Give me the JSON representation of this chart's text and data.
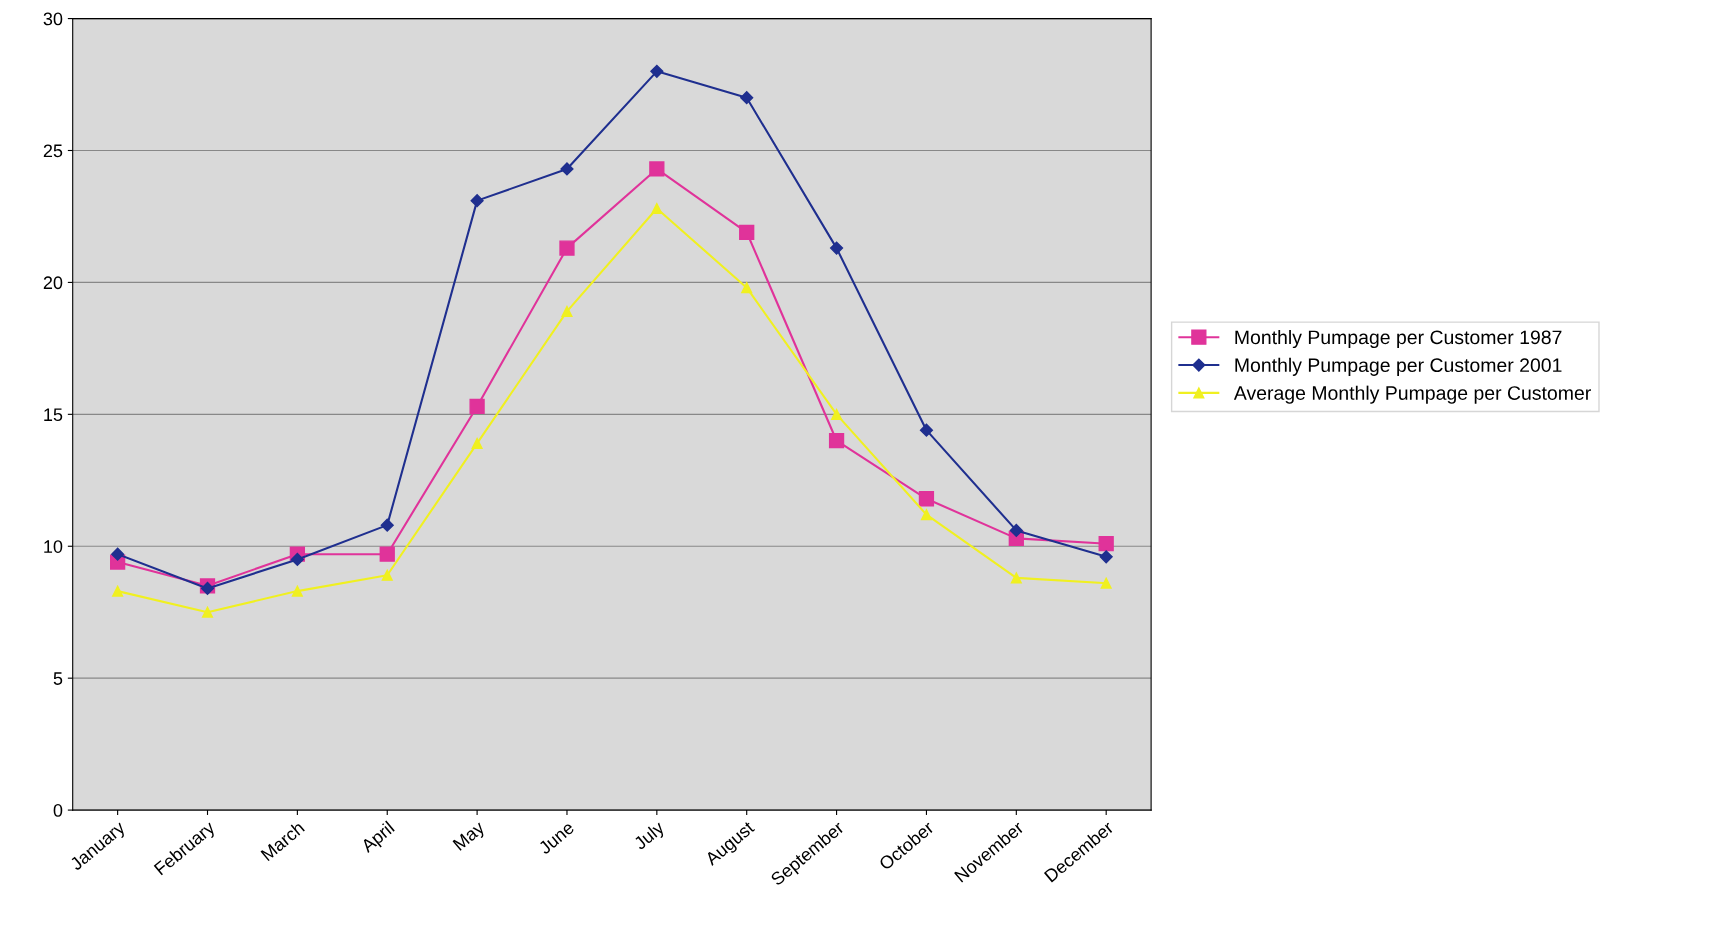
{
  "chart_data": {
    "type": "line",
    "categories": [
      "January",
      "February",
      "March",
      "April",
      "May",
      "June",
      "July",
      "August",
      "September",
      "October",
      "November",
      "December"
    ],
    "series": [
      {
        "name": "Monthly Pumpage per Customer 1987",
        "color": "#e0339a",
        "marker": "square",
        "values": [
          9.4,
          8.5,
          9.7,
          9.7,
          15.3,
          21.3,
          24.3,
          21.9,
          14.0,
          11.8,
          10.3,
          10.1
        ]
      },
      {
        "name": "Monthly Pumpage per Customer 2001",
        "color": "#1f2f8f",
        "marker": "diamond",
        "values": [
          9.7,
          8.4,
          9.5,
          10.8,
          23.1,
          24.3,
          28.0,
          27.0,
          21.3,
          14.4,
          10.6,
          9.6
        ]
      },
      {
        "name": "Average Monthly Pumpage per Customer",
        "color": "#f0f020",
        "marker": "triangle",
        "values": [
          8.3,
          7.5,
          8.3,
          8.9,
          13.9,
          18.9,
          22.8,
          19.8,
          15.0,
          11.2,
          8.8,
          8.6
        ]
      }
    ],
    "ylim": [
      0,
      30
    ],
    "yticks": [
      0,
      5,
      10,
      15,
      20,
      25,
      30
    ],
    "grid": "y",
    "legend": "right"
  }
}
